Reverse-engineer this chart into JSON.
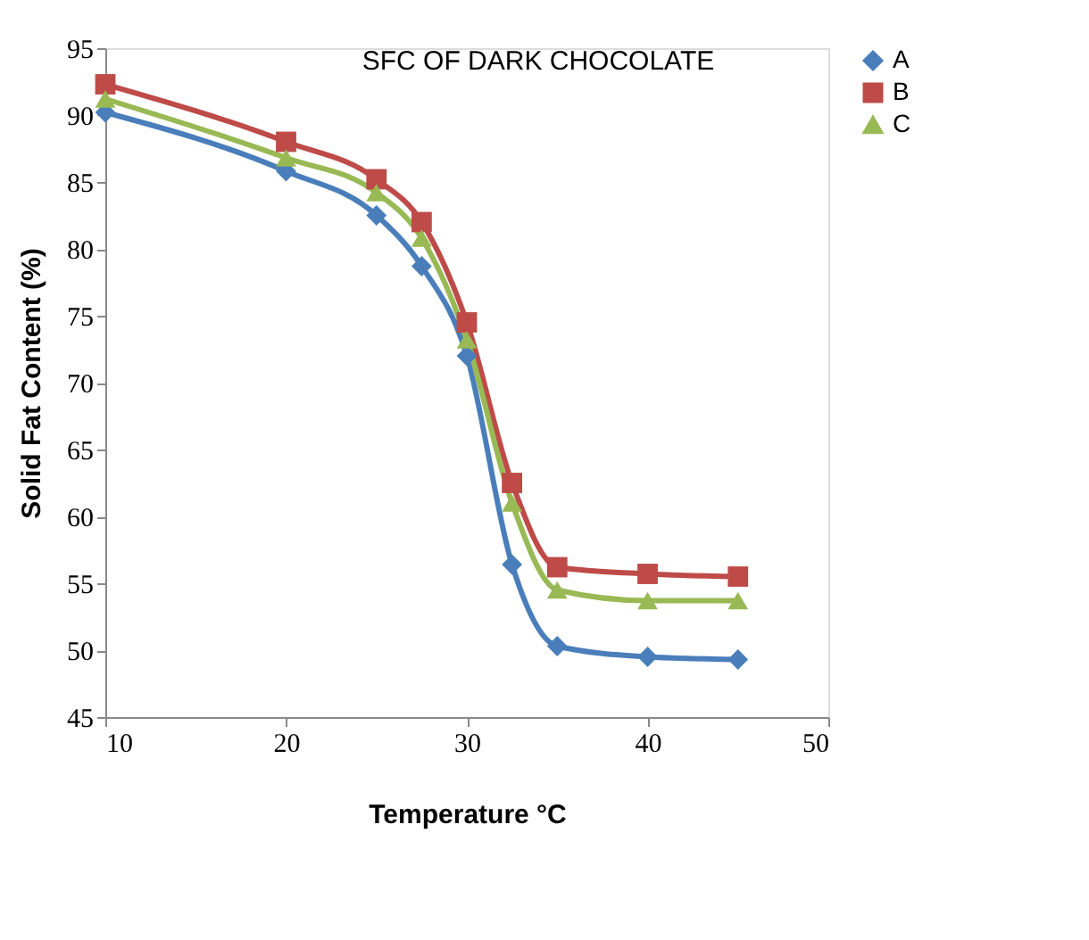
{
  "chart_data": {
    "type": "line",
    "title": "SFC OF DARK CHOCOLATE",
    "xlabel": "Temperature °C",
    "ylabel": "Solid Fat Content (%)",
    "x": [
      10,
      20,
      25,
      27.5,
      30,
      32.5,
      35,
      40,
      45
    ],
    "series": [
      {
        "name": "A",
        "color": "#4a7ebb",
        "marker": "diamond",
        "values": [
          90.2,
          85.8,
          82.5,
          78.7,
          72,
          56.4,
          50.3,
          49.5,
          49.3
        ]
      },
      {
        "name": "B",
        "color": "#be4b48",
        "marker": "square",
        "values": [
          92.3,
          88,
          85.2,
          82,
          74.5,
          62.5,
          56.2,
          55.7,
          55.5
        ]
      },
      {
        "name": "C",
        "color": "#98b954",
        "marker": "triangle",
        "values": [
          91.2,
          86.8,
          84.2,
          80.8,
          73.2,
          61,
          54.5,
          53.7,
          53.7
        ]
      }
    ],
    "xlim": [
      10,
      50
    ],
    "xticks": [
      10,
      20,
      30,
      40,
      50
    ],
    "ylim": [
      45,
      95
    ],
    "yticks": [
      45,
      50,
      55,
      60,
      65,
      70,
      75,
      80,
      85,
      90,
      95
    ],
    "grid": false,
    "legend": "right",
    "line_style": "solid"
  }
}
